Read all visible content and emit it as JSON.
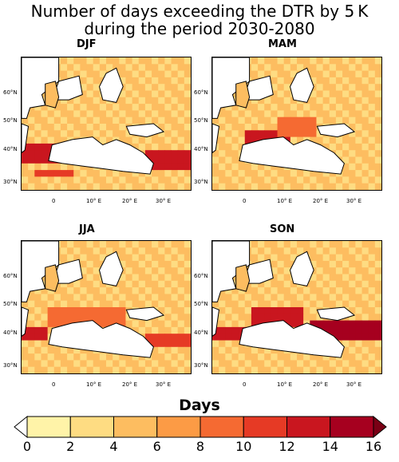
{
  "title_line1": "Number of days exceeding the DTR by 5 K",
  "title_line2": "during the period 2030-2080",
  "panels": [
    {
      "label": "DJF",
      "hotspots": [
        [
          0.0,
          0.65,
          0.22,
          0.12,
          13
        ],
        [
          0.72,
          0.7,
          0.28,
          0.12,
          13
        ],
        [
          0.05,
          0.82,
          0.25,
          0.08,
          10
        ]
      ]
    },
    {
      "label": "MAM",
      "hotspots": [
        [
          0.18,
          0.52,
          0.28,
          0.14,
          12
        ],
        [
          0.35,
          0.45,
          0.25,
          0.1,
          9
        ]
      ]
    },
    {
      "label": "JJA",
      "hotspots": [
        [
          0.0,
          0.62,
          0.12,
          0.1,
          12
        ],
        [
          0.15,
          0.48,
          0.45,
          0.12,
          8
        ],
        [
          0.7,
          0.68,
          0.3,
          0.1,
          11
        ]
      ]
    },
    {
      "label": "SON",
      "hotspots": [
        [
          0.0,
          0.62,
          0.2,
          0.12,
          13
        ],
        [
          0.2,
          0.48,
          0.3,
          0.12,
          12
        ],
        [
          0.55,
          0.6,
          0.45,
          0.12,
          14
        ]
      ]
    }
  ],
  "lat_labels": [
    "60°N",
    "50°N",
    "40°N",
    "30°N"
  ],
  "lon_labels": [
    "0",
    "10° E",
    "20° E",
    "30° E"
  ],
  "colorbar": {
    "title": "Days",
    "ticks": [
      "0",
      "2",
      "4",
      "6",
      "8",
      "10",
      "12",
      "14",
      "16"
    ],
    "colors": [
      "#fff3a8",
      "#fedc82",
      "#fdbd60",
      "#fc9b45",
      "#f56a32",
      "#e63a25",
      "#c9161f",
      "#a6001f"
    ],
    "under_color": "#ffffff",
    "over_color": "#7a0015",
    "min": 0,
    "max": 16
  },
  "base_days_color": "#fedc82",
  "land_background": "#fde9a0"
}
